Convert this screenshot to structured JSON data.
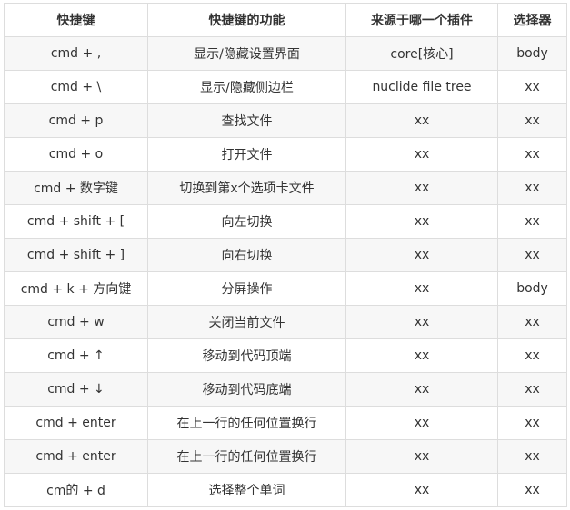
{
  "table": {
    "headers": [
      "快捷键",
      "快捷键的功能",
      "来源于哪一个插件",
      "选择器"
    ],
    "rows": [
      [
        "cmd + ,",
        "显示/隐藏设置界面",
        "core[核心]",
        "body"
      ],
      [
        "cmd + \\",
        "显示/隐藏侧边栏",
        "nuclide file tree",
        "xx"
      ],
      [
        "cmd + p",
        "查找文件",
        "xx",
        "xx"
      ],
      [
        "cmd + o",
        "打开文件",
        "xx",
        "xx"
      ],
      [
        "cmd + 数字键",
        "切换到第x个选项卡文件",
        "xx",
        "xx"
      ],
      [
        "cmd + shift + [",
        "向左切换",
        "xx",
        "xx"
      ],
      [
        "cmd + shift + ]",
        "向右切换",
        "xx",
        "xx"
      ],
      [
        "cmd + k + 方向键",
        "分屏操作",
        "xx",
        "body"
      ],
      [
        "cmd + w",
        "关闭当前文件",
        "xx",
        "xx"
      ],
      [
        "cmd + ↑",
        "移动到代码顶端",
        "xx",
        "xx"
      ],
      [
        "cmd + ↓",
        "移动到代码底端",
        "xx",
        "xx"
      ],
      [
        "cmd + enter",
        "在上一行的任何位置换行",
        "xx",
        "xx"
      ],
      [
        "cmd + enter",
        "在上一行的任何位置换行",
        "xx",
        "xx"
      ],
      [
        "cm的 + d",
        "选择整个单词",
        "xx",
        "xx"
      ]
    ]
  }
}
